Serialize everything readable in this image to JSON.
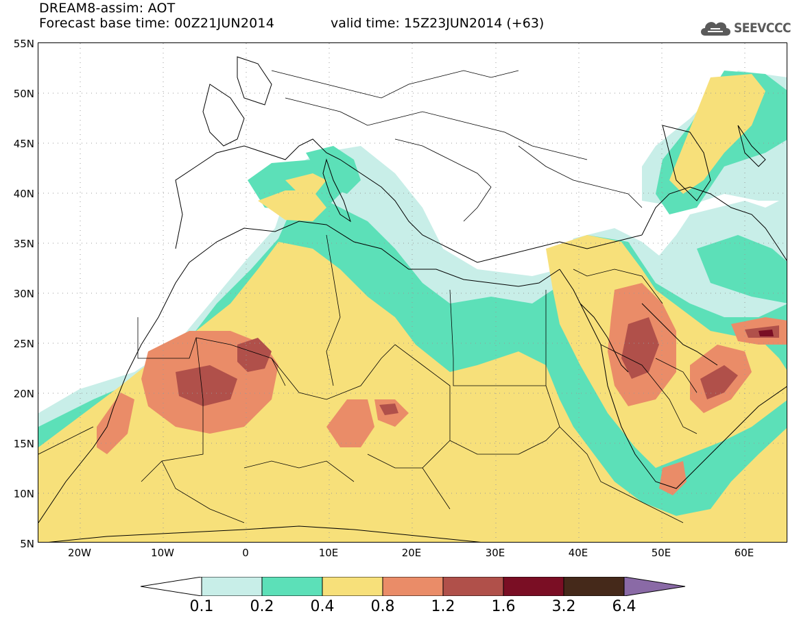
{
  "header": {
    "title_line1": "DREAM8-assim: AOT",
    "title_line2": "Forecast base time: 00Z21JUN2014",
    "valid_time": "valid time: 15Z23JUN2014 (+63)",
    "logo_text": "SEEVCCC"
  },
  "map": {
    "lat_labels": [
      "55N",
      "50N",
      "45N",
      "40N",
      "35N",
      "30N",
      "25N",
      "20N",
      "15N",
      "10N",
      "5N"
    ],
    "lon_labels": [
      "20W",
      "10W",
      "0",
      "10E",
      "20E",
      "30E",
      "40E",
      "50E",
      "60E"
    ],
    "grid": true,
    "colors": {
      "c01": "#c8eee8",
      "c02": "#5ce0b8",
      "c04": "#f7e07a",
      "c08": "#ea8c68",
      "c12": "#b0504a",
      "c16": "#7a0e24",
      "c32": "#45291a",
      "c64": "#8a6aa6"
    }
  },
  "colorbar": {
    "labels": [
      "0.1",
      "0.2",
      "0.4",
      "0.8",
      "1.2",
      "1.6",
      "3.2",
      "6.4"
    ],
    "colors": [
      "#ffffff",
      "#c8eee8",
      "#5ce0b8",
      "#f7e07a",
      "#ea8c68",
      "#b0504a",
      "#7a0e24",
      "#45291a",
      "#8a6aa6"
    ]
  }
}
